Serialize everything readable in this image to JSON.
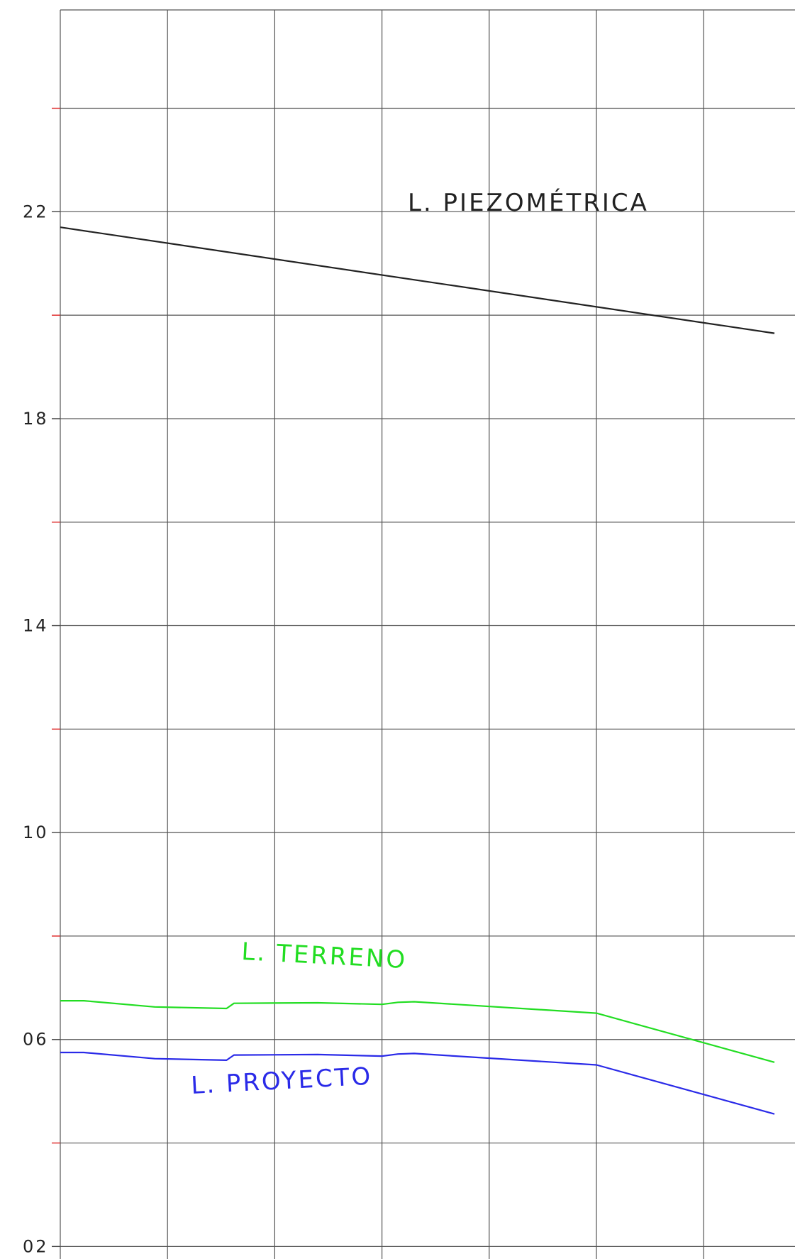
{
  "chart_data": {
    "type": "line",
    "title": "",
    "xlabel": "",
    "ylabel": "",
    "ylim": [
      2,
      25
    ],
    "xlim": [
      0,
      7
    ],
    "grid": true,
    "y_ticks": [
      {
        "value": 22,
        "label": "22"
      },
      {
        "value": 18,
        "label": "18"
      },
      {
        "value": 14,
        "label": "14"
      },
      {
        "value": 10,
        "label": "10"
      },
      {
        "value": 6,
        "label": "06"
      },
      {
        "value": 2,
        "label": "02"
      }
    ],
    "y_minor_ticks": [
      24,
      20,
      16,
      12,
      8,
      4
    ],
    "x_gridlines": [
      0,
      1,
      2,
      3,
      4,
      5,
      6,
      7
    ],
    "series": [
      {
        "name": "L. PIEZOMÉTRICA",
        "color": "#222222",
        "x": [
          0,
          6.66
        ],
        "y": [
          21.7,
          19.65
        ]
      },
      {
        "name": "L. TERRENO",
        "color": "#22dd22",
        "x": [
          0,
          0.22,
          0.88,
          1.55,
          1.62,
          2.4,
          3.0,
          3.15,
          3.3,
          5.0,
          6.66
        ],
        "y": [
          6.75,
          6.75,
          6.63,
          6.6,
          6.7,
          6.71,
          6.68,
          6.72,
          6.73,
          6.51,
          5.56
        ]
      },
      {
        "name": "L. PROYECTO",
        "color": "#2a2ae8",
        "x": [
          0,
          0.22,
          0.88,
          1.55,
          1.62,
          2.4,
          3.0,
          3.15,
          3.3,
          5.0,
          6.66
        ],
        "y": [
          5.75,
          5.75,
          5.63,
          5.6,
          5.7,
          5.71,
          5.68,
          5.72,
          5.73,
          5.51,
          4.56
        ]
      }
    ]
  }
}
